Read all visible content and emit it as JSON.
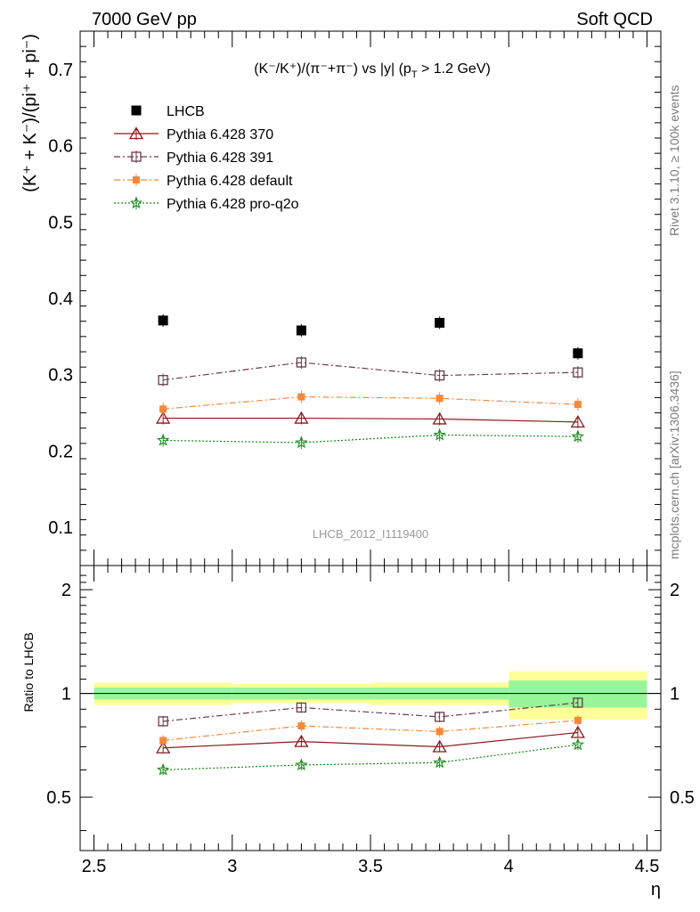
{
  "header": {
    "left": "7000 GeV pp",
    "right": "Soft QCD"
  },
  "side_text": {
    "upper": "Rivet 3.1.10, ≥ 100k events",
    "lower": "mcplots.cern.ch [arXiv:1306.3436]"
  },
  "watermark": "LHCB_2012_I1119400",
  "chart_data": [
    {
      "type": "scatter",
      "panel": "main",
      "title": "(K⁻/K⁺)/(π⁻+π⁻) vs |y| (p_T > 1.2 GeV)",
      "title_parts": {
        "main": "(K⁻/K⁺)/(π⁻+π⁻) vs |y| (p",
        "sub": "T",
        "tail": " > 1.2 GeV)"
      },
      "ylabel": "(K⁺ + K⁻)/(pi⁺ + pi⁻)",
      "x": [
        2.75,
        3.25,
        3.75,
        4.25
      ],
      "xlim": [
        2.45,
        4.55
      ],
      "ylim": [
        0.05,
        0.75
      ],
      "y_ticks": [
        "0.1",
        "0.2",
        "0.3",
        "0.4",
        "0.5",
        "0.6",
        "0.7"
      ],
      "legend_position": "top-left",
      "series": [
        {
          "name": "LHCB",
          "values": [
            0.371,
            0.358,
            0.368,
            0.328
          ],
          "marker": "square-filled",
          "color": "#000000",
          "line": "none"
        },
        {
          "name": "Pythia 6.428 370",
          "values": [
            0.243,
            0.243,
            0.242,
            0.238
          ],
          "marker": "triangle-open",
          "color": "#8b1a1a",
          "line": "solid"
        },
        {
          "name": "Pythia 6.428 391",
          "values": [
            0.293,
            0.316,
            0.299,
            0.303
          ],
          "marker": "square-open",
          "color": "#6b3a4a",
          "line": "dashdot"
        },
        {
          "name": "Pythia 6.428 default",
          "values": [
            0.255,
            0.271,
            0.269,
            0.261
          ],
          "marker": "square-filled-small",
          "color": "#f5883a",
          "line": "dashdot"
        },
        {
          "name": "Pythia 6.428 pro-q2o",
          "values": [
            0.214,
            0.211,
            0.221,
            0.219
          ],
          "marker": "star",
          "color": "#1a8a1a",
          "line": "dotted"
        }
      ]
    },
    {
      "type": "line",
      "panel": "ratio",
      "ylabel": "Ratio to LHCB",
      "xlabel": "η",
      "x": [
        2.75,
        3.25,
        3.75,
        4.25
      ],
      "xlim": [
        2.45,
        4.55
      ],
      "ylim": [
        0.35,
        2.35
      ],
      "x_ticks": [
        "2.5",
        "3",
        "3.5",
        "4",
        "4.5"
      ],
      "y_ticks": [
        "0.5",
        "1",
        "2"
      ],
      "reference_line": 1.0,
      "uncertainty_bands": [
        {
          "x_range": [
            2.5,
            3.0
          ],
          "stat": 0.04,
          "total": 0.075
        },
        {
          "x_range": [
            3.0,
            3.5
          ],
          "stat": 0.04,
          "total": 0.065
        },
        {
          "x_range": [
            3.5,
            4.0
          ],
          "stat": 0.04,
          "total": 0.075
        },
        {
          "x_range": [
            4.0,
            4.5
          ],
          "stat": 0.09,
          "total": 0.16
        }
      ],
      "series": [
        {
          "name": "Pythia 6.428 370",
          "values": [
            0.695,
            0.725,
            0.7,
            0.77
          ]
        },
        {
          "name": "Pythia 6.428 391",
          "values": [
            0.83,
            0.91,
            0.855,
            0.94
          ]
        },
        {
          "name": "Pythia 6.428 default",
          "values": [
            0.73,
            0.805,
            0.775,
            0.835
          ]
        },
        {
          "name": "Pythia 6.428 pro-q2o",
          "values": [
            0.6,
            0.62,
            0.63,
            0.71
          ]
        }
      ]
    }
  ]
}
